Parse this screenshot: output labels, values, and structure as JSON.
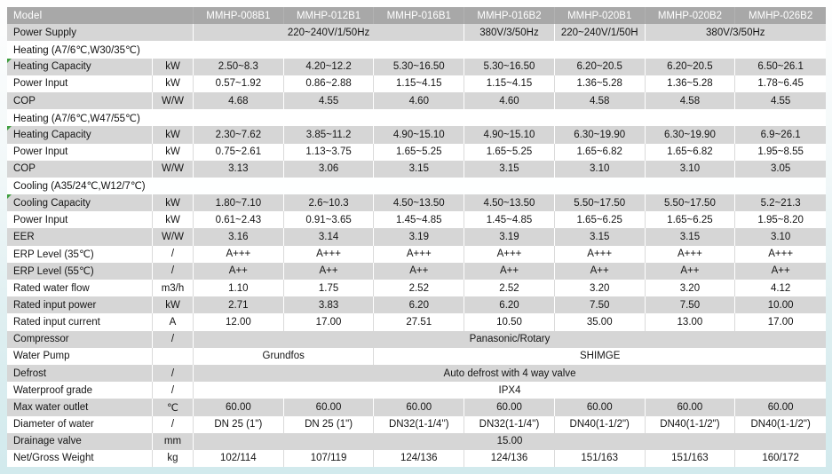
{
  "page": {
    "background_color": "#d2eaed",
    "table_header_color": "#a8a8a8",
    "row_shade_color": "#d6d6d6",
    "marker_color": "#3e9e3e"
  },
  "table": {
    "model_header": {
      "label": "Model",
      "models": [
        "MMHP-008B1",
        "MMHP-012B1",
        "MMHP-016B1",
        "MMHP-016B2",
        "MMHP-020B1",
        "MMHP-020B2",
        "MMHP-026B2"
      ]
    },
    "rows": [
      {
        "type": "span",
        "label": "Power Supply",
        "label_span": 2,
        "shade": true,
        "cells": [
          {
            "text": "220~240V/1/50Hz",
            "span": 3
          },
          {
            "text": "380V/3/50Hz",
            "span": 1
          },
          {
            "text": "220~240V/1/50H",
            "span": 1
          },
          {
            "text": "380V/3/50Hz",
            "span": 2
          }
        ]
      },
      {
        "type": "section",
        "label": "Heating  (A7/6℃,W30/35℃)"
      },
      {
        "type": "data",
        "label": "Heating Capacity",
        "unit": "kW",
        "shade": true,
        "marker": true,
        "values": [
          "2.50~8.3",
          "4.20~12.2",
          "5.30~16.50",
          "5.30~16.50",
          "6.20~20.5",
          "6.20~20.5",
          "6.50~26.1"
        ]
      },
      {
        "type": "data",
        "label": "Power Input",
        "unit": "kW",
        "shade": false,
        "values": [
          "0.57~1.92",
          "0.86~2.88",
          "1.15~4.15",
          "1.15~4.15",
          "1.36~5.28",
          "1.36~5.28",
          "1.78~6.45"
        ]
      },
      {
        "type": "data",
        "label": "COP",
        "unit": "W/W",
        "shade": true,
        "values": [
          "4.68",
          "4.55",
          "4.60",
          "4.60",
          "4.58",
          "4.58",
          "4.55"
        ]
      },
      {
        "type": "section",
        "label": "Heating  (A7/6℃,W47/55℃)"
      },
      {
        "type": "data",
        "label": "Heating Capacity",
        "unit": "kW",
        "shade": true,
        "marker": true,
        "values": [
          "2.30~7.62",
          "3.85~11.2",
          "4.90~15.10",
          "4.90~15.10",
          "6.30~19.90",
          "6.30~19.90",
          "6.9~26.1"
        ]
      },
      {
        "type": "data",
        "label": "Power Input",
        "unit": "kW",
        "shade": false,
        "values": [
          "0.75~2.61",
          "1.13~3.75",
          "1.65~5.25",
          "1.65~5.25",
          "1.65~6.82",
          "1.65~6.82",
          "1.95~8.55"
        ]
      },
      {
        "type": "data",
        "label": "COP",
        "unit": "W/W",
        "shade": true,
        "values": [
          "3.13",
          "3.06",
          "3.15",
          "3.15",
          "3.10",
          "3.10",
          "3.05"
        ]
      },
      {
        "type": "section",
        "label": "Cooling  (A35/24℃,W12/7℃)"
      },
      {
        "type": "data",
        "label": "Cooling Capacity",
        "unit": "kW",
        "shade": true,
        "marker": true,
        "values": [
          "1.80~7.10",
          "2.6~10.3",
          "4.50~13.50",
          "4.50~13.50",
          "5.50~17.50",
          "5.50~17.50",
          "5.2~21.3"
        ]
      },
      {
        "type": "data",
        "label": "Power Input",
        "unit": "kW",
        "shade": false,
        "values": [
          "0.61~2.43",
          "0.91~3.65",
          "1.45~4.85",
          "1.45~4.85",
          "1.65~6.25",
          "1.65~6.25",
          "1.95~8.20"
        ]
      },
      {
        "type": "data",
        "label": "EER",
        "unit": "W/W",
        "shade": true,
        "values": [
          "3.16",
          "3.14",
          "3.19",
          "3.19",
          "3.15",
          "3.15",
          "3.10"
        ]
      },
      {
        "type": "data",
        "label": "ERP Level  (35℃)",
        "unit": "/",
        "shade": false,
        "values": [
          "A+++",
          "A+++",
          "A+++",
          "A+++",
          "A+++",
          "A+++",
          "A+++"
        ]
      },
      {
        "type": "data",
        "label": "ERP Level  (55℃)",
        "unit": "/",
        "shade": true,
        "values": [
          "A++",
          "A++",
          "A++",
          "A++",
          "A++",
          "A++",
          "A++"
        ]
      },
      {
        "type": "data",
        "label": "Rated water flow",
        "unit": "m3/h",
        "shade": false,
        "values": [
          "1.10",
          "1.75",
          "2.52",
          "2.52",
          "3.20",
          "3.20",
          "4.12"
        ]
      },
      {
        "type": "data",
        "label": "Rated input power",
        "unit": "kW",
        "shade": true,
        "values": [
          "2.71",
          "3.83",
          "6.20",
          "6.20",
          "7.50",
          "7.50",
          "10.00"
        ]
      },
      {
        "type": "data",
        "label": "Rated input current",
        "unit": "A",
        "shade": false,
        "values": [
          "12.00",
          "17.00",
          "27.51",
          "10.50",
          "35.00",
          "13.00",
          "17.00"
        ]
      },
      {
        "type": "span",
        "label": "Compressor",
        "unit": "/",
        "shade": true,
        "cells": [
          {
            "text": "Panasonic/Rotary",
            "span": 7
          }
        ]
      },
      {
        "type": "span",
        "label": "Water Pump",
        "unit": "",
        "shade": false,
        "cells": [
          {
            "text": "Grundfos",
            "span": 2
          },
          {
            "text": "SHIMGE",
            "span": 5
          }
        ]
      },
      {
        "type": "span",
        "label": "Defrost",
        "unit": "/",
        "shade": true,
        "cells": [
          {
            "text": "Auto defrost with 4 way valve",
            "span": 7
          }
        ]
      },
      {
        "type": "span",
        "label": "Waterproof grade",
        "unit": "/",
        "shade": false,
        "cells": [
          {
            "text": "IPX4",
            "span": 7
          }
        ]
      },
      {
        "type": "data",
        "label": "Max water outlet",
        "unit": "℃",
        "shade": true,
        "values": [
          "60.00",
          "60.00",
          "60.00",
          "60.00",
          "60.00",
          "60.00",
          "60.00"
        ]
      },
      {
        "type": "data",
        "label": "Diameter of water",
        "unit": "/",
        "shade": false,
        "values": [
          "DN 25 (1\")",
          "DN 25 (1\")",
          "DN32(1-1/4'')",
          "DN32(1-1/4'')",
          "DN40(1-1/2\")",
          "DN40(1-1/2\")",
          "DN40(1-1/2\")"
        ]
      },
      {
        "type": "span",
        "label": "Drainage valve",
        "unit": "mm",
        "shade": true,
        "cells": [
          {
            "text": "15.00",
            "span": 7
          }
        ]
      },
      {
        "type": "data",
        "label": "Net/Gross Weight",
        "unit": "kg",
        "shade": false,
        "values": [
          "102/114",
          "107/119",
          "124/136",
          "124/136",
          "151/163",
          "151/163",
          "160/172"
        ]
      }
    ]
  }
}
